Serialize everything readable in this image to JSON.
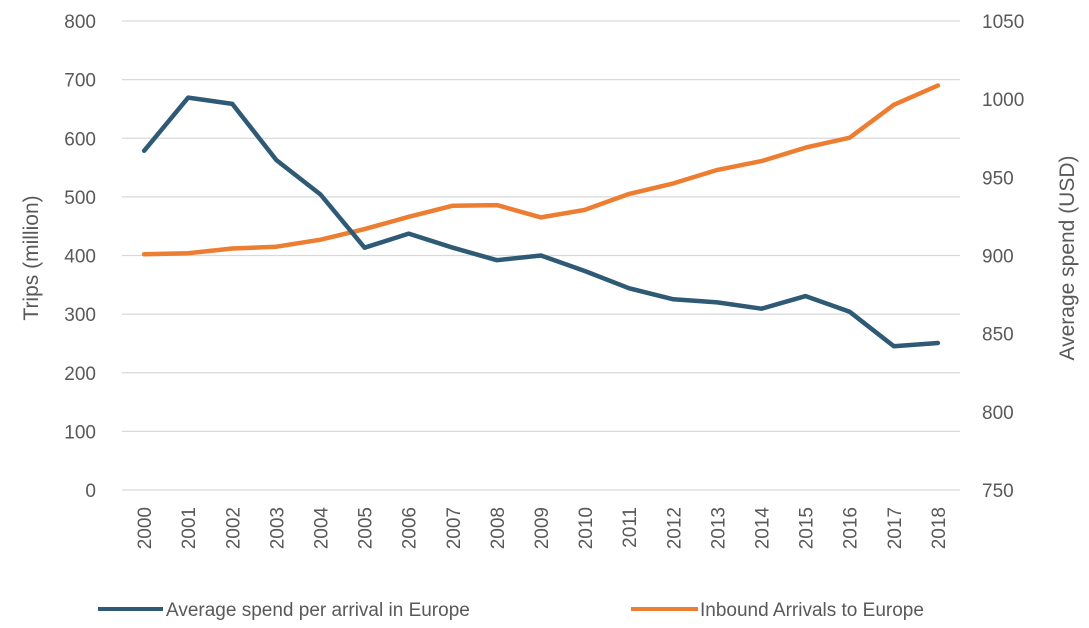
{
  "chart_data": {
    "type": "line",
    "categories": [
      "2000",
      "2001",
      "2002",
      "2003",
      "2004",
      "2005",
      "2006",
      "2007",
      "2008",
      "2009",
      "2010",
      "2011",
      "2012",
      "2013",
      "2014",
      "2015",
      "2016",
      "2017",
      "2018"
    ],
    "ylabel_left": "Trips (million)",
    "ylabel_right": "Average spend (USD)",
    "ylim_left": [
      0,
      800
    ],
    "ylim_right": [
      750,
      1050
    ],
    "yticks_left": [
      0,
      100,
      200,
      300,
      400,
      500,
      600,
      700,
      800
    ],
    "yticks_right": [
      750,
      800,
      850,
      900,
      950,
      1000,
      1050
    ],
    "grid": true,
    "legend_position": "bottom",
    "series": [
      {
        "name": "Average spend per arrival in Europe",
        "axis": "right",
        "color": "#2e5a75",
        "values": [
          967,
          1001,
          997,
          961,
          939,
          905,
          914,
          905,
          897,
          900,
          890,
          879,
          872,
          870,
          866,
          874,
          864,
          842,
          844
        ]
      },
      {
        "name": "Inbound Arrivals to Europe",
        "axis": "left",
        "color": "#ed7d31",
        "values": [
          402,
          404,
          412,
          415,
          427,
          445,
          466,
          485,
          486,
          465,
          478,
          505,
          523,
          546,
          561,
          584,
          601,
          657,
          690
        ]
      }
    ]
  }
}
